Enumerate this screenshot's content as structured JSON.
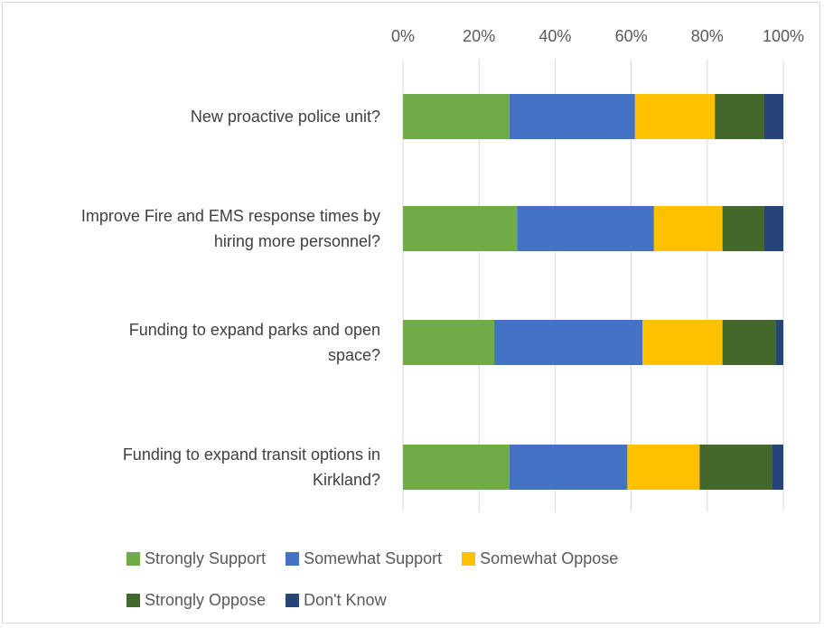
{
  "chart_data": {
    "type": "bar",
    "orientation": "horizontal",
    "stacked": "percent",
    "xlim": [
      0,
      100
    ],
    "x_ticks": [
      "0%",
      "20%",
      "40%",
      "60%",
      "80%",
      "100%"
    ],
    "axis_position": "top",
    "grid": true,
    "legend_position": "bottom",
    "categories": [
      [
        "New proactive police unit?"
      ],
      [
        "Improve Fire and EMS response times by",
        "hiring more personnel?"
      ],
      [
        "Funding to expand parks and open",
        "space?"
      ],
      [
        "Funding to expand transit options in",
        "Kirkland?"
      ]
    ],
    "series": [
      {
        "name": "Strongly Support",
        "color": "#70ad47",
        "values": [
          28,
          30,
          24,
          28
        ]
      },
      {
        "name": "Somewhat Support",
        "color": "#4472c4",
        "values": [
          33,
          36,
          39,
          31
        ]
      },
      {
        "name": "Somewhat Oppose",
        "color": "#ffc000",
        "values": [
          21,
          18,
          21,
          19
        ]
      },
      {
        "name": "Strongly Oppose",
        "color": "#43682b",
        "values": [
          13,
          11,
          14,
          19
        ]
      },
      {
        "name": "Don't Know",
        "color": "#264478",
        "values": [
          5,
          5,
          2,
          3
        ]
      }
    ]
  }
}
